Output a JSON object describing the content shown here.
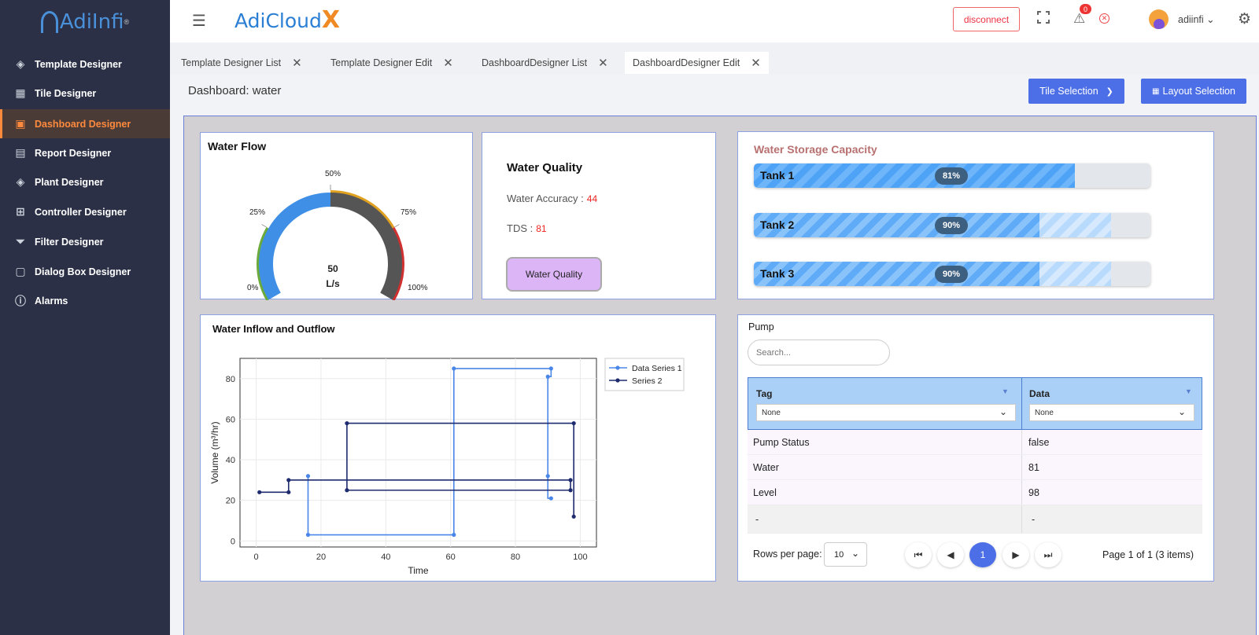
{
  "sidebar": {
    "logo_text": "AdiInfi",
    "logo_reg": "®",
    "items": [
      {
        "label": "Template Designer",
        "icon": "layers-icon"
      },
      {
        "label": "Tile Designer",
        "icon": "grid-icon"
      },
      {
        "label": "Dashboard Designer",
        "icon": "layout-icon",
        "active": true
      },
      {
        "label": "Report Designer",
        "icon": "document-icon"
      },
      {
        "label": "Plant Designer",
        "icon": "layers-icon"
      },
      {
        "label": "Controller Designer",
        "icon": "chip-icon"
      },
      {
        "label": "Filter Designer",
        "icon": "filter-icon"
      },
      {
        "label": "Dialog Box Designer",
        "icon": "chat-icon"
      },
      {
        "label": "Alarms",
        "icon": "alert-circle-icon"
      }
    ]
  },
  "header": {
    "app_name": "AdiCloud",
    "app_suffix": "X",
    "disconnect_label": "disconnect",
    "alert_count": "0",
    "username": "adiinfi",
    "chevron": "⌄"
  },
  "tabs": [
    {
      "label": "Template Designer List"
    },
    {
      "label": "Template Designer Edit"
    },
    {
      "label": "DashboardDesigner List"
    },
    {
      "label": "DashboardDesigner Edit",
      "active": true
    }
  ],
  "page": {
    "title": "Dashboard: water",
    "tile_selection_label": "Tile Selection",
    "layout_selection_label": "Layout Selection"
  },
  "water_flow": {
    "title": "Water Flow",
    "value": "50",
    "unit": "L/s",
    "value_fraction": 0.5,
    "ticks": [
      "0%",
      "25%",
      "50%",
      "75%",
      "100%"
    ]
  },
  "water_quality": {
    "title": "Water Quality",
    "accuracy_label": "Water Accuracy :",
    "accuracy_value": "44",
    "tds_label": "TDS :",
    "tds_value": "81",
    "button_label": "Water Quality"
  },
  "storage": {
    "title": "Water Storage Capacity",
    "title_color": "#b87070",
    "tanks": [
      {
        "name": "Tank 1",
        "percent_label": "81%",
        "percent": 81
      },
      {
        "name": "Tank 2",
        "percent_label": "90%",
        "percent": 90
      },
      {
        "name": "Tank 3",
        "percent_label": "90%",
        "percent": 90
      }
    ]
  },
  "chart_data": {
    "type": "line",
    "title": "Water Inflow and Outflow",
    "xlabel": "Time",
    "ylabel": "Volume (m³/hr)",
    "xlim": [
      -5,
      105
    ],
    "ylim": [
      -3,
      90
    ],
    "xticks": [
      0,
      20,
      40,
      60,
      80,
      100
    ],
    "yticks": [
      0,
      20,
      40,
      60,
      80
    ],
    "grid": true,
    "legend": "top-right",
    "series": [
      {
        "name": "Data Series 1",
        "color": "#4a86e8",
        "step": "vh",
        "x": [
          16,
          16,
          61,
          61,
          91,
          90,
          90,
          91
        ],
        "y": [
          32,
          3,
          3,
          85,
          85,
          81,
          32,
          21
        ]
      },
      {
        "name": "Series 2",
        "color": "#1e2b6e",
        "step": "vh",
        "x": [
          1,
          10,
          10,
          97,
          97,
          28,
          28,
          98,
          98
        ],
        "y": [
          24,
          24,
          30,
          30,
          25,
          25,
          58,
          58,
          12
        ]
      }
    ]
  },
  "pump": {
    "title": "Pump",
    "search_placeholder": "Search...",
    "columns": [
      {
        "title": "Tag",
        "filter": "None"
      },
      {
        "title": "Data",
        "filter": "None"
      }
    ],
    "rows": [
      [
        "Pump Status",
        "false"
      ],
      [
        "Water",
        "81"
      ],
      [
        "Level",
        "98"
      ],
      [
        "-",
        "-"
      ]
    ],
    "rows_per_page_label": "Rows per page:",
    "rows_per_page": "10",
    "current_page": "1",
    "page_info": "Page 1 of 1 (3 items)"
  }
}
